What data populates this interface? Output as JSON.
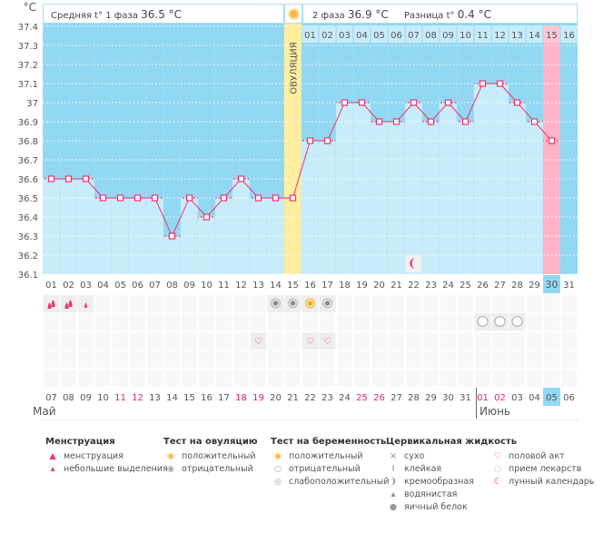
{
  "header": {
    "unit": "°C",
    "phase1_label": "Средняя t° 1 фаза",
    "phase1_value": "36.5 °C",
    "phase2_label": "2 фаза",
    "phase2_value": "36.9 °C",
    "diff_label": "Разница t°",
    "diff_value": "0.4 °C",
    "ovulation_label": "ОВУЛЯЦИЯ"
  },
  "chart_data": {
    "type": "line",
    "ylim": [
      36.1,
      37.4
    ],
    "yticks": [
      "37.4",
      "37.3",
      "37.2",
      "37.1",
      "37",
      "36.9",
      "36.8",
      "36.7",
      "36.6",
      "36.5",
      "36.4",
      "36.3",
      "36.2",
      "36.1"
    ],
    "cycle_days": [
      "01",
      "02",
      "03",
      "04",
      "05",
      "06",
      "07",
      "08",
      "09",
      "10",
      "11",
      "12",
      "13",
      "14",
      "15",
      "16",
      "17",
      "18",
      "19",
      "20",
      "21",
      "22",
      "23",
      "24",
      "25",
      "26",
      "27",
      "28",
      "29",
      "30",
      "31"
    ],
    "temperatures": [
      36.6,
      36.6,
      36.6,
      36.5,
      36.5,
      36.5,
      36.5,
      36.3,
      36.5,
      36.4,
      36.5,
      36.6,
      36.5,
      36.5,
      36.5,
      36.8,
      36.8,
      37.0,
      37.0,
      36.9,
      36.9,
      37.0,
      36.9,
      37.0,
      36.9,
      37.1,
      37.1,
      37.0,
      36.9,
      36.8,
      null
    ],
    "phase2_days": [
      "01",
      "02",
      "03",
      "04",
      "05",
      "06",
      "07",
      "08",
      "09",
      "10",
      "11",
      "12",
      "13",
      "14",
      "15",
      "16"
    ],
    "ovulation_day": 15,
    "highlight_day": 30,
    "grid": true,
    "colors": {
      "line": "#f0326e",
      "above": "#92d8f3",
      "below": "#c9ecfb",
      "ovulation": "#fdeea0",
      "highlight": "#ffb3c6"
    }
  },
  "dates": [
    "07",
    "08",
    "09",
    "10",
    "11",
    "12",
    "13",
    "14",
    "15",
    "16",
    "17",
    "18",
    "19",
    "20",
    "21",
    "22",
    "23",
    "24",
    "25",
    "26",
    "27",
    "28",
    "29",
    "30",
    "31",
    "01",
    "02",
    "03",
    "04",
    "05",
    "06"
  ],
  "weekend_idx": [
    4,
    5,
    11,
    12,
    18,
    19,
    25,
    26
  ],
  "months": [
    "Май",
    "Июнь"
  ],
  "markers": {
    "menstruation": {
      "1": "heavy",
      "2": "heavy",
      "3": "light"
    },
    "ovulation_test": {
      "14": "negative",
      "15": "negative",
      "16": "positive",
      "17": "negative"
    },
    "pregnancy_test": {
      "26": "negative",
      "27": "negative",
      "28": "negative"
    },
    "intercourse": [
      13,
      16,
      17
    ],
    "moon": [
      22
    ]
  },
  "legend": [
    {
      "title": "Менструация",
      "items": [
        {
          "icon": "drops-icon",
          "label": "менструация"
        },
        {
          "icon": "drop-small-icon",
          "label": "небольшие выделения"
        }
      ]
    },
    {
      "title": "Тест на овуляцию",
      "items": [
        {
          "icon": "test-positive-icon",
          "label": "положительный"
        },
        {
          "icon": "test-negative-icon",
          "label": "отрицательный"
        }
      ]
    },
    {
      "title": "Тест на беременность",
      "items": [
        {
          "icon": "preg-positive-icon",
          "label": "положительный"
        },
        {
          "icon": "preg-negative-icon",
          "label": "отрицательный"
        },
        {
          "icon": "preg-weak-icon",
          "label": "слабоположительный"
        }
      ]
    },
    {
      "title": "Цервикальная жидкость",
      "items": [
        {
          "icon": "dry-icon",
          "label": "сухо"
        },
        {
          "icon": "sticky-icon",
          "label": "клейкая"
        },
        {
          "icon": "creamy-icon",
          "label": "кремообразная"
        },
        {
          "icon": "watery-icon",
          "label": "водянистая"
        },
        {
          "icon": "egg-white-icon",
          "label": "яичный белок"
        }
      ]
    },
    {
      "title": "",
      "items": [
        {
          "icon": "heart-icon",
          "label": "половой акт"
        },
        {
          "icon": "pill-icon",
          "label": "прием лекарств"
        },
        {
          "icon": "moon-icon",
          "label": "лунный календарь"
        }
      ]
    }
  ]
}
